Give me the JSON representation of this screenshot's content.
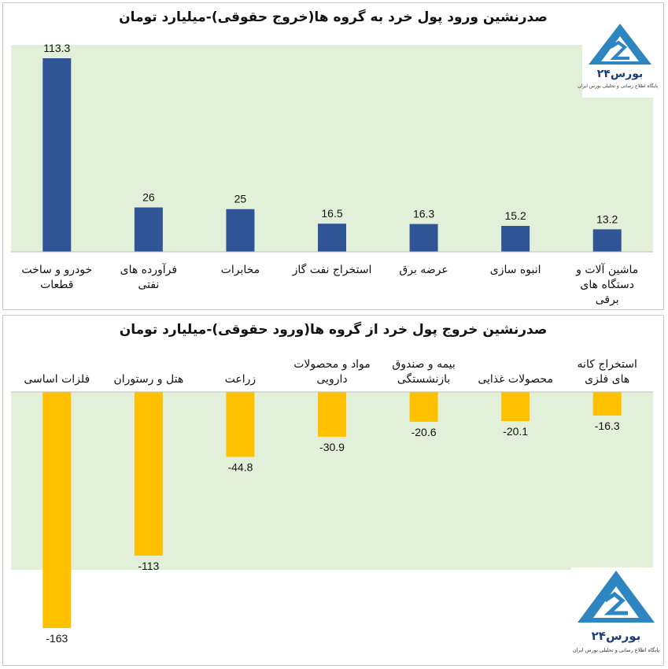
{
  "colors": {
    "plot_background": "#e3f0d9",
    "inflow_bar": "#2f5597",
    "outflow_bar": "#ffc000",
    "logo_blue": "#2e86c1"
  },
  "logo": {
    "name": "بورس۲۴",
    "tagline": "پایگاه اطلاع رسانی و تحلیلی بورس ایران",
    "icon": "bourse24-logo-icon"
  },
  "chart_data": [
    {
      "type": "bar",
      "title": "صدرنشین ورود پول خرد به گروه ها(خروج حقوقی)-میلیارد تومان",
      "categories": [
        [
          "خودرو و ساخت",
          "قطعات"
        ],
        [
          "فرآورده های",
          "نفتی"
        ],
        [
          "مخابرات"
        ],
        [
          "استخراج نفت گاز"
        ],
        [
          "عرضه برق"
        ],
        [
          "انبوه سازی"
        ],
        [
          "ماشین آلات و",
          "دستگاه های",
          "برقی"
        ]
      ],
      "values": [
        113.3,
        26,
        25,
        16.5,
        16.3,
        15.2,
        13.2
      ],
      "value_labels": [
        "113.3",
        "26",
        "25",
        "16.5",
        "16.3",
        "15.2",
        "13.2"
      ],
      "ylim": [
        0,
        113.3
      ],
      "grid": false,
      "legend": "none"
    },
    {
      "type": "bar",
      "title": "صدرنشین خروج پول خرد از گروه ها(ورود حقوقی)-میلیارد تومان",
      "categories": [
        [
          "فلزات اساسی"
        ],
        [
          "هتل و رستوران"
        ],
        [
          "زراعت"
        ],
        [
          "مواد و محصولات",
          "دارویی"
        ],
        [
          "بیمه و صندوق",
          "بازنشستگی"
        ],
        [
          "محصولات غذایی"
        ],
        [
          "استخراج کانه",
          "های فلزی"
        ]
      ],
      "values": [
        -163,
        -113,
        -44.8,
        -30.9,
        -20.6,
        -20.1,
        -16.3
      ],
      "value_labels": [
        "-163",
        "-113",
        "-44.8",
        "-30.9",
        "-20.6",
        "-20.1",
        "-16.3"
      ],
      "ylim": [
        -163,
        0
      ],
      "grid": false,
      "legend": "none"
    }
  ]
}
